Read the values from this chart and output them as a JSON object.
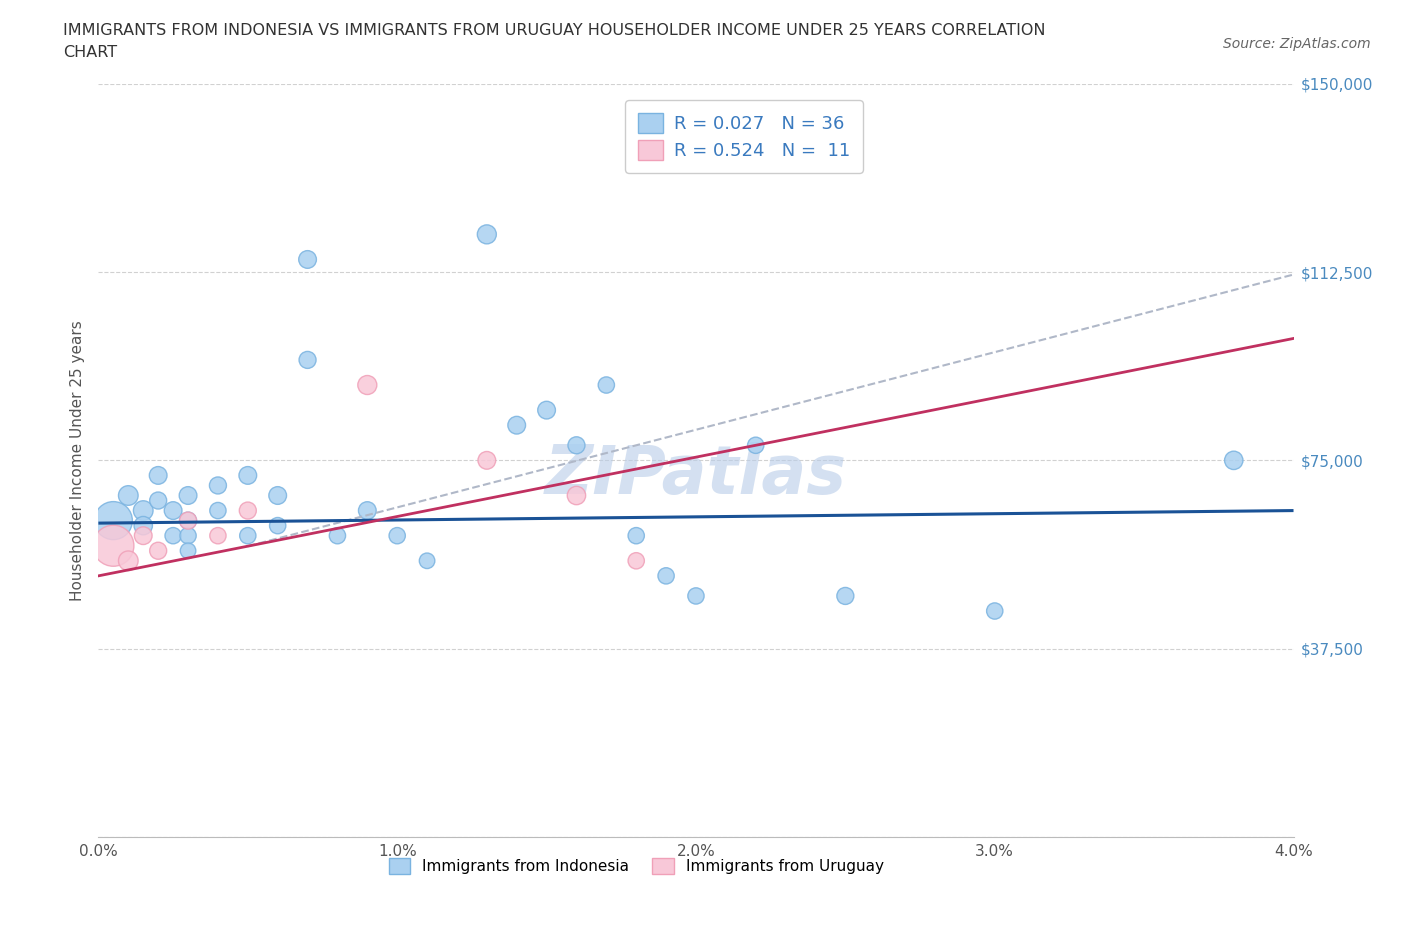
{
  "title_line1": "IMMIGRANTS FROM INDONESIA VS IMMIGRANTS FROM URUGUAY HOUSEHOLDER INCOME UNDER 25 YEARS CORRELATION",
  "title_line2": "CHART",
  "source": "Source: ZipAtlas.com",
  "ylabel": "Householder Income Under 25 years",
  "xlim": [
    0.0,
    0.04
  ],
  "ylim": [
    0,
    150000
  ],
  "yticks": [
    0,
    37500,
    75000,
    112500,
    150000
  ],
  "ytick_labels": [
    "",
    "$37,500",
    "$75,000",
    "$112,500",
    "$150,000"
  ],
  "xticks": [
    0.0,
    0.01,
    0.02,
    0.03,
    0.04
  ],
  "xtick_labels": [
    "0.0%",
    "1.0%",
    "2.0%",
    "3.0%",
    "4.0%"
  ],
  "grid_color": "#cccccc",
  "background_color": "#ffffff",
  "watermark": "ZIPatlas",
  "watermark_color": "#b8cce8",
  "indonesia_color": "#7ab3e0",
  "indonesia_color_fill": "#aad0f0",
  "uruguay_color": "#f0a0b8",
  "uruguay_color_fill": "#f8c8d8",
  "indonesia_R": 0.027,
  "indonesia_N": 36,
  "uruguay_R": 0.524,
  "uruguay_N": 11,
  "trend_indonesia_color": "#1a5296",
  "trend_uruguay_color": "#c03060",
  "trend_dashed_color": "#b0b8c8",
  "indonesia_x": [
    0.0005,
    0.001,
    0.0015,
    0.0015,
    0.002,
    0.002,
    0.0025,
    0.0025,
    0.003,
    0.003,
    0.003,
    0.003,
    0.004,
    0.004,
    0.005,
    0.005,
    0.006,
    0.006,
    0.007,
    0.007,
    0.008,
    0.009,
    0.01,
    0.011,
    0.013,
    0.014,
    0.015,
    0.016,
    0.017,
    0.018,
    0.019,
    0.02,
    0.022,
    0.025,
    0.03,
    0.038
  ],
  "indonesia_y": [
    63000,
    68000,
    65000,
    62000,
    72000,
    67000,
    65000,
    60000,
    68000,
    63000,
    60000,
    57000,
    70000,
    65000,
    72000,
    60000,
    68000,
    62000,
    115000,
    95000,
    60000,
    65000,
    60000,
    55000,
    120000,
    82000,
    85000,
    78000,
    90000,
    60000,
    52000,
    48000,
    78000,
    48000,
    45000,
    75000
  ],
  "indonesia_size": [
    300,
    80,
    80,
    70,
    65,
    60,
    65,
    55,
    65,
    60,
    55,
    50,
    60,
    55,
    65,
    55,
    65,
    55,
    65,
    60,
    55,
    65,
    55,
    50,
    75,
    65,
    65,
    60,
    55,
    55,
    55,
    55,
    55,
    60,
    55,
    70
  ],
  "uruguay_x": [
    0.0005,
    0.001,
    0.0015,
    0.002,
    0.003,
    0.004,
    0.005,
    0.009,
    0.013,
    0.016,
    0.018
  ],
  "uruguay_y": [
    58000,
    55000,
    60000,
    57000,
    63000,
    60000,
    65000,
    90000,
    75000,
    68000,
    55000
  ],
  "uruguay_size": [
    350,
    80,
    65,
    60,
    60,
    55,
    60,
    75,
    65,
    70,
    55
  ]
}
